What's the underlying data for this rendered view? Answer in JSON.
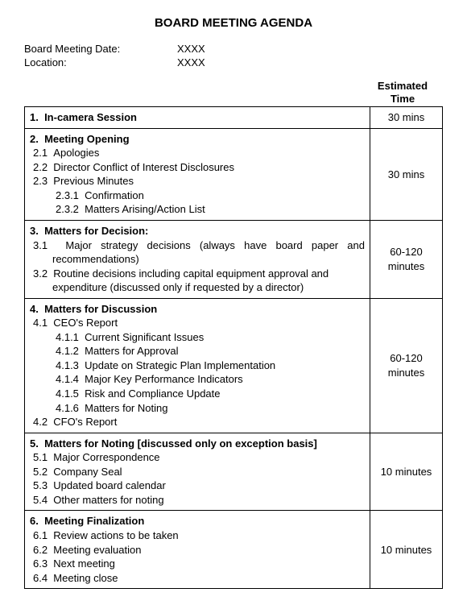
{
  "title": "BOARD MEETING AGENDA",
  "meta": {
    "date_label": "Board Meeting Date:",
    "date_value": "XXXX",
    "location_label": "Location:",
    "location_value": "XXXX"
  },
  "time_header_l1": "Estimated",
  "time_header_l2": "Time",
  "rows": [
    {
      "num": "1.",
      "title": "In-camera Session",
      "time": "30 mins",
      "children": []
    },
    {
      "num": "2.",
      "title": "Meeting Opening",
      "time": "30 mins",
      "children": [
        {
          "num": "2.1",
          "text": "Apologies"
        },
        {
          "num": "2.2",
          "text": "Director Conflict of Interest Disclosures"
        },
        {
          "num": "2.3",
          "text": "Previous Minutes",
          "children": [
            {
              "num": "2.3.1",
              "text": "Confirmation"
            },
            {
              "num": "2.3.2",
              "text": "Matters Arising/Action List"
            }
          ]
        }
      ]
    },
    {
      "num": "3.",
      "title": "Matters for Decision:",
      "time": "60-120 minutes",
      "children": [
        {
          "num": "3.1",
          "text": "Major strategy decisions (always have board paper and recommendations)",
          "justify": true
        },
        {
          "num": "3.2",
          "text": "Routine decisions including capital equipment approval and expenditure (discussed only if requested by a director)"
        }
      ]
    },
    {
      "num": "4.",
      "title": "Matters for Discussion",
      "time": "60-120 minutes",
      "children": [
        {
          "num": "4.1",
          "text": "CEO's Report",
          "children": [
            {
              "num": "4.1.1",
              "text": "Current Significant Issues"
            },
            {
              "num": "4.1.2",
              "text": "Matters for Approval"
            },
            {
              "num": "4.1.3",
              "text": "Update on Strategic Plan Implementation"
            },
            {
              "num": "4.1.4",
              "text": "Major Key Performance Indicators"
            },
            {
              "num": "4.1.5",
              "text": "Risk and Compliance Update"
            },
            {
              "num": "4.1.6",
              "text": "Matters for Noting"
            }
          ]
        },
        {
          "num": "4.2",
          "text": "CFO's Report"
        }
      ]
    },
    {
      "num": "5.",
      "title": "Matters for Noting [discussed only on exception basis]",
      "time": "10 minutes",
      "children": [
        {
          "num": "5.1",
          "text": "Major Correspondence"
        },
        {
          "num": "5.2",
          "text": "Company Seal"
        },
        {
          "num": "5.3",
          "text": "Updated board calendar"
        },
        {
          "num": "5.4",
          "text": "Other matters for noting"
        }
      ]
    },
    {
      "num": "6.",
      "title": "Meeting Finalization",
      "time": "10 minutes",
      "children": [
        {
          "num": "6.1",
          "text": "Review actions to be taken"
        },
        {
          "num": "6.2",
          "text": "Meeting evaluation"
        },
        {
          "num": "6.3",
          "text": "Next meeting"
        },
        {
          "num": "6.4",
          "text": "Meeting close"
        }
      ]
    }
  ]
}
